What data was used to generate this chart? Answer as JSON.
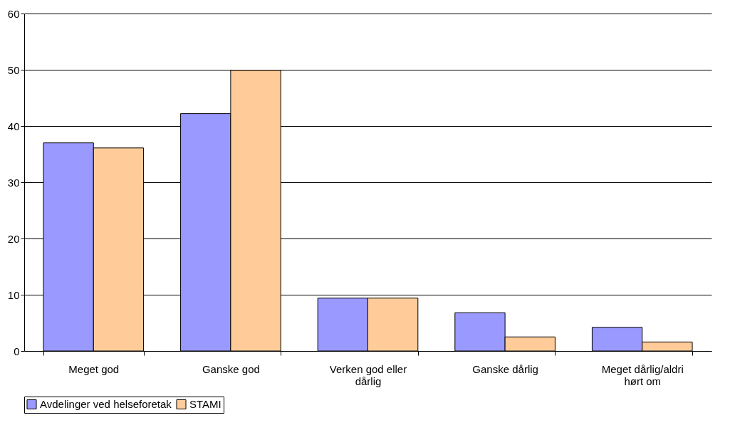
{
  "chart_data": {
    "type": "bar",
    "categories": [
      "Meget god",
      "Ganske god",
      "Verken god eller dårlig",
      "Ganske dårlig",
      "Meget dårlig/aldri hørt om"
    ],
    "series": [
      {
        "name": "Avdelinger ved helseforetak",
        "color": "#9999ff",
        "values": [
          37,
          42.2,
          9.4,
          6.8,
          4.2
        ]
      },
      {
        "name": "STAMI",
        "color": "#ffcc99",
        "values": [
          36.1,
          49.9,
          9.4,
          2.5,
          1.6
        ]
      }
    ],
    "ylim": [
      0,
      60
    ],
    "yticks": [
      0,
      10,
      20,
      30,
      40,
      50,
      60
    ],
    "grid": "y",
    "legend": "bottom"
  }
}
